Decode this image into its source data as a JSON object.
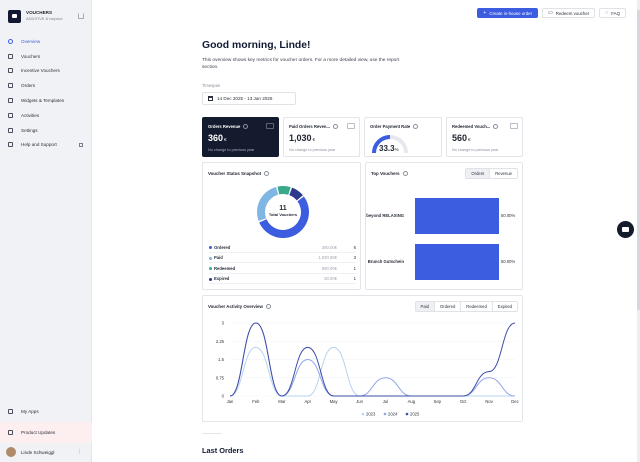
{
  "app": {
    "title": "VOUCHERS",
    "subtitle": "ADDITIVE & beyond"
  },
  "sidebar": {
    "items": [
      {
        "label": "Overview",
        "icon": "home-icon"
      },
      {
        "label": "Vouchers",
        "icon": "ticket-icon"
      },
      {
        "label": "Incentive Vouchers",
        "icon": "gift-icon"
      },
      {
        "label": "Orders",
        "icon": "box-icon"
      },
      {
        "label": "Widgets & Templates",
        "icon": "layers-icon"
      },
      {
        "label": "Activities",
        "icon": "activity-icon"
      },
      {
        "label": "Settings",
        "icon": "gear-icon"
      },
      {
        "label": "Help and Support",
        "icon": "help-icon"
      }
    ],
    "bottom": {
      "my_apps": "My Apps",
      "product_updates": "Product Updates"
    },
    "user": {
      "name": "Linde Schweiggl"
    }
  },
  "topbar": {
    "create_order": "Create in-house order",
    "redeem": "Redeem voucher",
    "faq": "FAQ"
  },
  "header": {
    "greeting": "Good morning, Linde!",
    "intro": "This overview shows key metrics for voucher orders. For a more detailed view, use the report section.",
    "timespan_label": "Timespan",
    "timespan_value": "14 Dec 2025 - 13 Jan 2026"
  },
  "kpis": [
    {
      "title": "Orders Revenue",
      "value": "360",
      "unit": "€",
      "note": "No change to previous year"
    },
    {
      "title": "Paid Orders Reven...",
      "value": "1,030",
      "unit": "€",
      "note": "No change to previous year"
    },
    {
      "title": "Order Payment Rate",
      "value": "33.3",
      "unit": "%",
      "gauge": 0.333
    },
    {
      "title": "Redeemed Vouch...",
      "value": "560",
      "unit": "€",
      "note": "No change to previous year"
    }
  ],
  "snapshot": {
    "title": "Voucher Status Snapshot",
    "total": "11",
    "total_label": "Total Vouchers",
    "rows": [
      {
        "name": "Ordered",
        "amount": "360.00€",
        "count": "6",
        "value": 6,
        "color": "#3d5de0"
      },
      {
        "name": "Paid",
        "amount": "1,030.00€",
        "count": "3",
        "value": 3,
        "color": "#7fb6e3"
      },
      {
        "name": "Redeemed",
        "amount": "560.00€",
        "count": "1",
        "value": 1,
        "color": "#3aa88a"
      },
      {
        "name": "Expired",
        "amount": "50.00€",
        "count": "1",
        "value": 1,
        "color": "#2c3a8c"
      }
    ]
  },
  "top_vouchers": {
    "title": "Top Vouchers",
    "toggle": [
      "Orders",
      "Revenue"
    ],
    "items": [
      {
        "label": "beyond RELAXING",
        "pct_label": "50.00%",
        "share": 0.5
      },
      {
        "label": "Brunch Gutschein",
        "pct_label": "50.00%",
        "share": 0.5
      }
    ]
  },
  "activity": {
    "title": "Voucher Activity Overview",
    "filters": [
      "Paid",
      "Ordered",
      "Redeemed",
      "Expired"
    ],
    "active_filter": "Paid"
  },
  "chart_data": {
    "type": "line",
    "categories": [
      "Jan",
      "Feb",
      "Mar",
      "Apr",
      "May",
      "Jun",
      "Jul",
      "Aug",
      "Sep",
      "Oct",
      "Nov",
      "Dec"
    ],
    "y_ticks": [
      "0",
      "0.75",
      "1.5",
      "2.25",
      "3"
    ],
    "ylim": [
      0,
      3
    ],
    "series": [
      {
        "name": "2023",
        "color": "#b9d3ee",
        "values": [
          0,
          2,
          0,
          0,
          2,
          0,
          0,
          0,
          0,
          0,
          0,
          0
        ]
      },
      {
        "name": "2024",
        "color": "#8fa4e8",
        "values": [
          0,
          3,
          0,
          1.5,
          0,
          0,
          0.75,
          0,
          0,
          0,
          0.75,
          0
        ]
      },
      {
        "name": "2025",
        "color": "#3d4ea8",
        "values": [
          0,
          3,
          0,
          2,
          0,
          0,
          0,
          0,
          0,
          0,
          1,
          3
        ]
      }
    ]
  },
  "sections": {
    "last_orders": "Last Orders"
  }
}
